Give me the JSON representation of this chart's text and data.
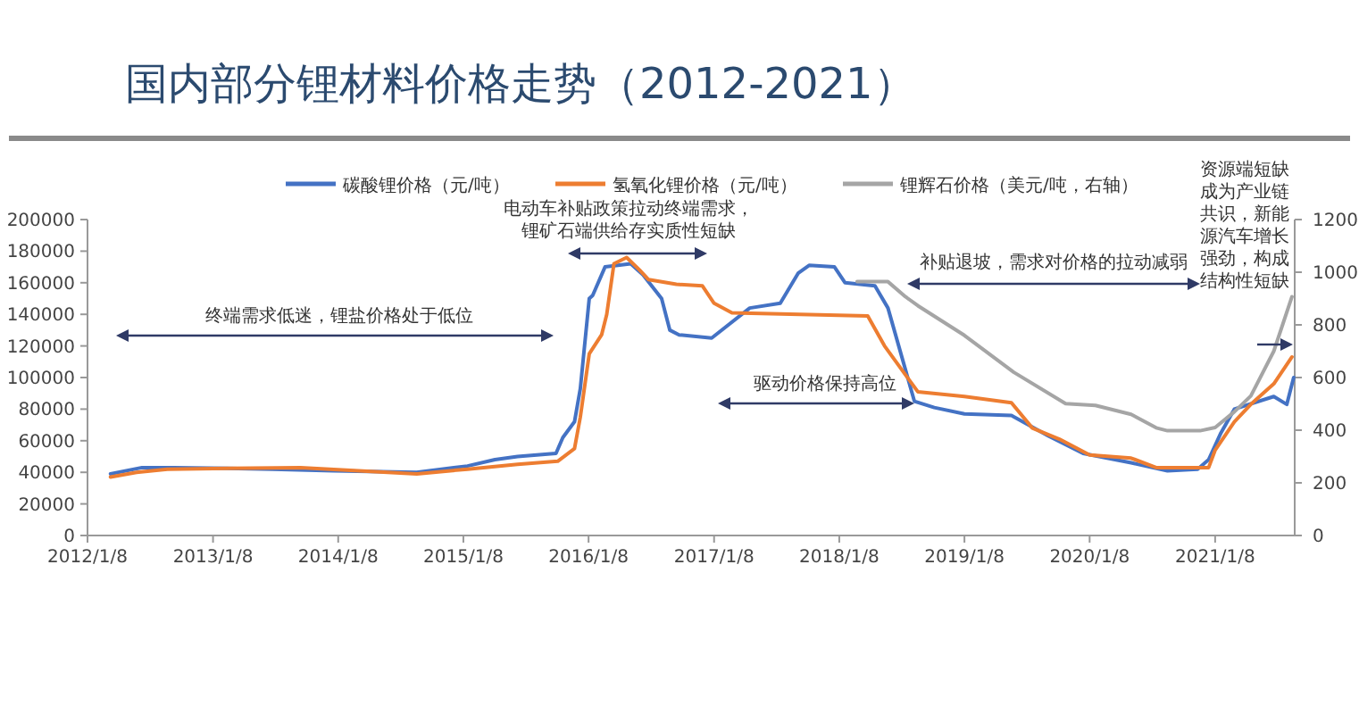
{
  "chart_data": {
    "type": "line",
    "title": "国内部分锂材料价格走势（2012-2021）",
    "xlim": [
      "2012-01-08",
      "2021-08-28"
    ],
    "xticks": [
      {
        "value": "2012-01-08",
        "label": "2012/1/8"
      },
      {
        "value": "2013-01-08",
        "label": "2013/1/8"
      },
      {
        "value": "2014-01-08",
        "label": "2014/1/8"
      },
      {
        "value": "2015-01-08",
        "label": "2015/1/8"
      },
      {
        "value": "2016-01-08",
        "label": "2016/1/8"
      },
      {
        "value": "2017-01-08",
        "label": "2017/1/8"
      },
      {
        "value": "2018-01-08",
        "label": "2018/1/8"
      },
      {
        "value": "2019-01-08",
        "label": "2019/1/8"
      },
      {
        "value": "2020-01-08",
        "label": "2020/1/8"
      },
      {
        "value": "2021-01-08",
        "label": "2021/1/8"
      }
    ],
    "ylim": [
      0,
      200000
    ],
    "yticks": [
      0,
      20000,
      40000,
      60000,
      80000,
      100000,
      120000,
      140000,
      160000,
      180000,
      200000
    ],
    "y2lim": [
      0,
      1200
    ],
    "y2ticks": [
      0,
      200,
      400,
      600,
      800,
      1000,
      1200
    ],
    "legend": "top",
    "grid": false,
    "series": [
      {
        "name": "碳酸锂价格（元/吨）",
        "color": "#4472c4",
        "x": [
          "2012-03-15",
          "2012-06-15",
          "2012-09-15",
          "2013-07-01",
          "2013-12-25",
          "2014-08-25",
          "2015-01-20",
          "2015-04-10",
          "2015-06-15",
          "2015-10-05",
          "2015-10-25",
          "2015-11-28",
          "2015-12-15",
          "2016-01-10",
          "2016-01-20",
          "2016-02-25",
          "2016-05-10",
          "2016-06-15",
          "2016-08-08",
          "2016-09-01",
          "2016-09-28",
          "2017-01-01",
          "2017-04-22",
          "2017-07-20",
          "2017-09-10",
          "2017-10-12",
          "2017-12-25",
          "2018-01-25",
          "2018-04-22",
          "2018-05-30",
          "2018-08-15",
          "2018-10-12",
          "2019-01-08",
          "2019-05-25",
          "2019-09-10",
          "2019-12-20",
          "2020-05-08",
          "2020-08-22",
          "2020-11-18",
          "2020-12-20",
          "2021-01-25",
          "2021-03-05",
          "2021-06-28",
          "2021-08-05",
          "2021-08-25"
        ],
        "values": [
          39000,
          43000,
          43000,
          42000,
          41000,
          40000,
          44000,
          48000,
          50000,
          52000,
          62000,
          72000,
          93000,
          150000,
          152000,
          170000,
          172000,
          165000,
          150000,
          130000,
          127000,
          125000,
          144000,
          147000,
          166000,
          171000,
          170000,
          160000,
          158000,
          144000,
          85000,
          81000,
          77000,
          76000,
          63000,
          52000,
          46000,
          41000,
          42000,
          48000,
          65000,
          80000,
          88000,
          83000,
          100000
        ]
      },
      {
        "name": "氢氧化锂价格（元/吨）",
        "color": "#ed7d31",
        "x": [
          "2012-03-15",
          "2012-05-30",
          "2012-08-28",
          "2013-09-20",
          "2014-08-25",
          "2015-01-20",
          "2015-06-15",
          "2015-10-10",
          "2015-11-28",
          "2015-12-15",
          "2016-01-10",
          "2016-02-15",
          "2016-03-01",
          "2016-03-22",
          "2016-04-28",
          "2016-06-05",
          "2016-07-01",
          "2016-09-20",
          "2016-12-05",
          "2017-01-08",
          "2017-03-01",
          "2018-04-01",
          "2018-05-20",
          "2018-08-25",
          "2019-01-08",
          "2019-05-25",
          "2019-07-25",
          "2019-10-12",
          "2020-01-08",
          "2020-05-08",
          "2020-07-20",
          "2020-12-20",
          "2021-01-08",
          "2021-03-05",
          "2021-04-22",
          "2021-06-28",
          "2021-08-20"
        ],
        "values": [
          37000,
          40000,
          42000,
          43000,
          39000,
          42000,
          45000,
          47000,
          55000,
          75000,
          115000,
          127000,
          140000,
          172000,
          176000,
          168000,
          162000,
          159000,
          158000,
          147000,
          141000,
          139000,
          120000,
          91000,
          88000,
          84000,
          68000,
          61000,
          51000,
          49000,
          43000,
          43000,
          54000,
          72000,
          83000,
          96000,
          113000
        ]
      },
      {
        "name": "锂辉石价格（美元/吨，右轴）",
        "color": "#a5a5a5",
        "axis": "y2",
        "x": [
          "2018-03-01",
          "2018-05-30",
          "2018-07-20",
          "2018-08-25",
          "2019-01-08",
          "2019-06-01",
          "2019-10-30",
          "2020-01-25",
          "2020-05-08",
          "2020-07-20",
          "2020-08-22",
          "2020-11-25",
          "2021-01-08",
          "2021-03-05",
          "2021-04-22",
          "2021-06-28",
          "2021-08-20"
        ],
        "values": [
          964,
          964,
          907,
          873,
          760,
          620,
          501,
          494,
          460,
          409,
          398,
          398,
          410,
          470,
          530,
          700,
          907
        ]
      }
    ],
    "annotations": [
      "电动车补贴政策拉动终端需求，锂矿石端供给存实质性短缺",
      "终端需求低迷，锂盐价格处于低位",
      "补贴退坡，需求对价格的拉动减弱",
      "驱动价格保持高位",
      "资源端短缺成为产业链共识，新能源汽车增长强劲，构成结构性短缺"
    ]
  }
}
